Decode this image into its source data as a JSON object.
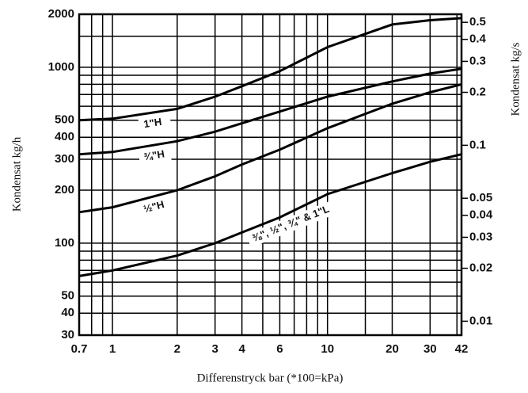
{
  "chart_data": {
    "type": "line",
    "x_label": "Differenstryck bar (*100=kPa)",
    "y_label": "Kondensat kg/h",
    "y2_label": "Kondensat kg/s",
    "x": [
      0.7,
      1,
      2,
      3,
      4,
      6,
      10,
      20,
      30,
      42
    ],
    "series": [
      {
        "name": "1\"H",
        "color": "#000000",
        "values": [
          500,
          510,
          580,
          680,
          780,
          950,
          1300,
          1750,
          1850,
          1900
        ]
      },
      {
        "name": "¾\"H",
        "color": "#000000",
        "values": [
          320,
          330,
          380,
          430,
          480,
          560,
          680,
          830,
          920,
          980
        ]
      },
      {
        "name": "½\"H",
        "color": "#000000",
        "values": [
          150,
          160,
          200,
          240,
          280,
          340,
          450,
          620,
          720,
          800
        ]
      },
      {
        "name": "⅜\", ½\", ¾\" & 1\"L",
        "color": "#000000",
        "values": [
          65,
          70,
          85,
          100,
          115,
          140,
          190,
          250,
          290,
          320
        ]
      }
    ],
    "xlim": [
      0.7,
      42
    ],
    "xticks": [
      0.7,
      1,
      2,
      3,
      4,
      6,
      10,
      20,
      30,
      42
    ],
    "x_minor_grid": [
      0.8,
      0.9,
      5,
      7,
      8,
      9,
      15,
      40
    ],
    "ylim": [
      30,
      2000
    ],
    "yticks": [
      30,
      40,
      50,
      100,
      200,
      300,
      400,
      500,
      1000,
      2000
    ],
    "y_minor_grid": [
      60,
      70,
      80,
      90,
      600,
      700,
      800,
      900,
      1500
    ],
    "y2lim": [
      0.008333,
      0.5556
    ],
    "y2ticks": [
      0.01,
      0.02,
      0.03,
      0.04,
      0.05,
      0.1,
      0.2,
      0.3,
      0.4,
      0.5
    ],
    "log_x": true,
    "log_y": true,
    "grid": true
  }
}
